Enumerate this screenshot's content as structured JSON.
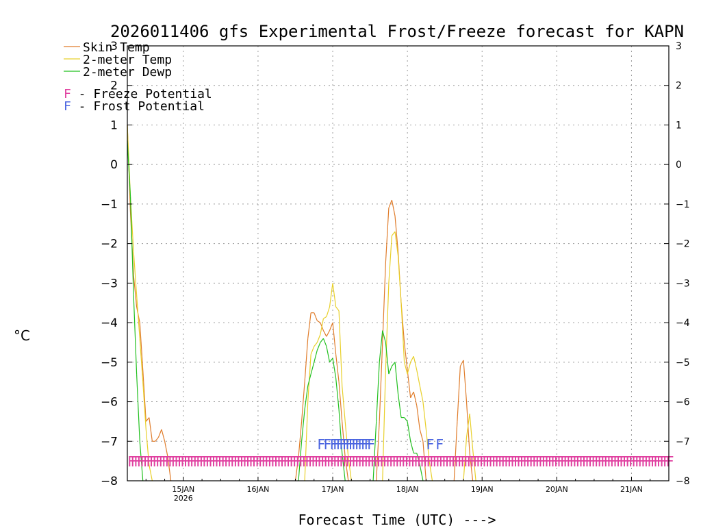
{
  "chart_data": {
    "type": "line",
    "title": "2026011406 gfs Experimental Frost/Freeze forecast for KAPN",
    "ylabel": "°C",
    "xlabel": "Forecast Time (UTC) --->",
    "ylim": [
      -8,
      3
    ],
    "yticks": [
      -8,
      -7,
      -6,
      -5,
      -4,
      -3,
      -2,
      -1,
      0,
      1,
      2,
      3
    ],
    "ytick_labels": [
      "−8",
      "−7",
      "−6",
      "−5",
      "−4",
      "−3",
      "−2",
      "−1",
      "0",
      "1",
      "2",
      "3"
    ],
    "xlim": [
      0,
      174
    ],
    "x_units": "hours since 2026-01-14 06Z",
    "xticks": [
      {
        "hour": 18,
        "label": "15JAN",
        "sublabel": "2026"
      },
      {
        "hour": 42,
        "label": "16JAN",
        "sublabel": ""
      },
      {
        "hour": 66,
        "label": "17JAN",
        "sublabel": ""
      },
      {
        "hour": 90,
        "label": "18JAN",
        "sublabel": ""
      },
      {
        "hour": 114,
        "label": "19JAN",
        "sublabel": ""
      },
      {
        "hour": 138,
        "label": "20JAN",
        "sublabel": ""
      },
      {
        "hour": 162,
        "label": "21JAN",
        "sublabel": ""
      }
    ],
    "grid": true,
    "legend_position": "top-left",
    "colors": {
      "skin": "#e07c2a",
      "temp": "#e8d02a",
      "dewp": "#22c01f",
      "freeze": "#e040a0",
      "frost": "#4a64e0"
    },
    "series": [
      {
        "name": "Skin Temp",
        "color": "#e07c2a",
        "points": [
          [
            0,
            1.0
          ],
          [
            1,
            -1.2
          ],
          [
            2,
            -2.8
          ],
          [
            3,
            -3.6
          ],
          [
            4,
            -4.0
          ],
          [
            5,
            -5.2
          ],
          [
            6,
            -6.5
          ],
          [
            7,
            -6.4
          ],
          [
            8,
            -7.0
          ],
          [
            9,
            -7.0
          ],
          [
            10,
            -6.9
          ],
          [
            11,
            -6.7
          ],
          [
            12,
            -7.0
          ],
          [
            13,
            -7.4
          ],
          [
            14,
            -8.0
          ],
          [
            54,
            -8.0
          ],
          [
            55,
            -7.4
          ],
          [
            56,
            -6.5
          ],
          [
            57,
            -5.5
          ],
          [
            58,
            -4.4
          ],
          [
            59,
            -3.75
          ],
          [
            60,
            -3.75
          ],
          [
            61,
            -3.95
          ],
          [
            62,
            -4.0
          ],
          [
            63,
            -4.2
          ],
          [
            64,
            -4.35
          ],
          [
            65,
            -4.2
          ],
          [
            66,
            -4.0
          ],
          [
            67,
            -4.8
          ],
          [
            68,
            -5.5
          ],
          [
            69,
            -6.5
          ],
          [
            70,
            -7.4
          ],
          [
            71,
            -8.0
          ],
          [
            80,
            -8.0
          ],
          [
            81,
            -6.5
          ],
          [
            82,
            -4.5
          ],
          [
            83,
            -2.5
          ],
          [
            84,
            -1.1
          ],
          [
            85,
            -0.9
          ],
          [
            86,
            -1.3
          ],
          [
            87,
            -2.2
          ],
          [
            88,
            -3.5
          ],
          [
            89,
            -4.5
          ],
          [
            90,
            -5.2
          ],
          [
            91,
            -5.9
          ],
          [
            92,
            -5.75
          ],
          [
            93,
            -6.1
          ],
          [
            94,
            -6.7
          ],
          [
            95,
            -7.0
          ],
          [
            96,
            -8.0
          ],
          [
            105,
            -8.0
          ],
          [
            106,
            -6.5
          ],
          [
            107,
            -5.1
          ],
          [
            108,
            -4.95
          ],
          [
            109,
            -6.0
          ],
          [
            110,
            -7.3
          ],
          [
            111,
            -8.0
          ]
        ]
      },
      {
        "name": "2-meter Temp",
        "color": "#e8d02a",
        "points": [
          [
            0,
            1.0
          ],
          [
            1,
            -0.8
          ],
          [
            2,
            -2.2
          ],
          [
            3,
            -3.3
          ],
          [
            4,
            -4.4
          ],
          [
            5,
            -5.5
          ],
          [
            6,
            -6.7
          ],
          [
            7,
            -7.6
          ],
          [
            8,
            -8.0
          ],
          [
            57,
            -8.0
          ],
          [
            58,
            -6.0
          ],
          [
            59,
            -4.8
          ],
          [
            60,
            -4.6
          ],
          [
            61,
            -4.5
          ],
          [
            62,
            -4.3
          ],
          [
            63,
            -3.9
          ],
          [
            64,
            -3.85
          ],
          [
            65,
            -3.6
          ],
          [
            66,
            -3.0
          ],
          [
            67,
            -3.6
          ],
          [
            68,
            -3.7
          ],
          [
            69,
            -5.6
          ],
          [
            70,
            -6.5
          ],
          [
            71,
            -7.4
          ],
          [
            72,
            -8.0
          ],
          [
            82,
            -8.0
          ],
          [
            83,
            -5.2
          ],
          [
            84,
            -3.0
          ],
          [
            85,
            -1.8
          ],
          [
            86,
            -1.7
          ],
          [
            87,
            -2.3
          ],
          [
            88,
            -3.5
          ],
          [
            89,
            -5.0
          ],
          [
            90,
            -5.3
          ],
          [
            91,
            -5.0
          ],
          [
            92,
            -4.85
          ],
          [
            93,
            -5.2
          ],
          [
            94,
            -5.6
          ],
          [
            95,
            -6.0
          ],
          [
            96,
            -6.7
          ],
          [
            97,
            -7.5
          ],
          [
            98,
            -8.0
          ],
          [
            108,
            -8.0
          ],
          [
            109,
            -6.9
          ],
          [
            110,
            -6.3
          ],
          [
            111,
            -7.2
          ],
          [
            112,
            -8.0
          ]
        ]
      },
      {
        "name": "2-meter Dewp",
        "color": "#22c01f",
        "points": [
          [
            0,
            0.6
          ],
          [
            1,
            -0.8
          ],
          [
            2,
            -3.3
          ],
          [
            3,
            -5.3
          ],
          [
            4,
            -7.0
          ],
          [
            5,
            -8.0
          ],
          [
            55,
            -8.0
          ],
          [
            56,
            -7.0
          ],
          [
            57,
            -6.2
          ],
          [
            58,
            -5.6
          ],
          [
            59,
            -5.3
          ],
          [
            60,
            -5.0
          ],
          [
            61,
            -4.7
          ],
          [
            62,
            -4.5
          ],
          [
            63,
            -4.4
          ],
          [
            64,
            -4.6
          ],
          [
            65,
            -5.0
          ],
          [
            66,
            -4.9
          ],
          [
            67,
            -5.4
          ],
          [
            68,
            -6.2
          ],
          [
            69,
            -7.3
          ],
          [
            70,
            -8.0
          ],
          [
            79,
            -8.0
          ],
          [
            80,
            -6.5
          ],
          [
            81,
            -5.0
          ],
          [
            82,
            -4.2
          ],
          [
            83,
            -4.5
          ],
          [
            84,
            -5.3
          ],
          [
            85,
            -5.1
          ],
          [
            86,
            -5.0
          ],
          [
            87,
            -5.8
          ],
          [
            88,
            -6.4
          ],
          [
            89,
            -6.4
          ],
          [
            90,
            -6.5
          ],
          [
            91,
            -7.0
          ],
          [
            92,
            -7.3
          ],
          [
            93,
            -7.3
          ],
          [
            94,
            -7.6
          ],
          [
            95,
            -8.0
          ]
        ]
      }
    ],
    "frost_marks": {
      "letter": "F",
      "hours": [
        61,
        63,
        65,
        66,
        67,
        68,
        69,
        70,
        71,
        72,
        73,
        74,
        75,
        76,
        77,
        96,
        99
      ]
    },
    "freeze_row": {
      "letter": "F",
      "hour_start": 0,
      "hour_end": 174
    },
    "legend": [
      {
        "label": "Skin Temp",
        "color": "#e07c2a"
      },
      {
        "label": "2-meter Temp",
        "color": "#e8d02a"
      },
      {
        "label": "2-meter Dewp",
        "color": "#22c01f"
      }
    ],
    "annotations": [
      {
        "prefix": "F",
        "text": " - Freeze Potential",
        "color": "#e040a0"
      },
      {
        "prefix": "F",
        "text": " - Frost Potential",
        "color": "#4a64e0"
      }
    ]
  }
}
